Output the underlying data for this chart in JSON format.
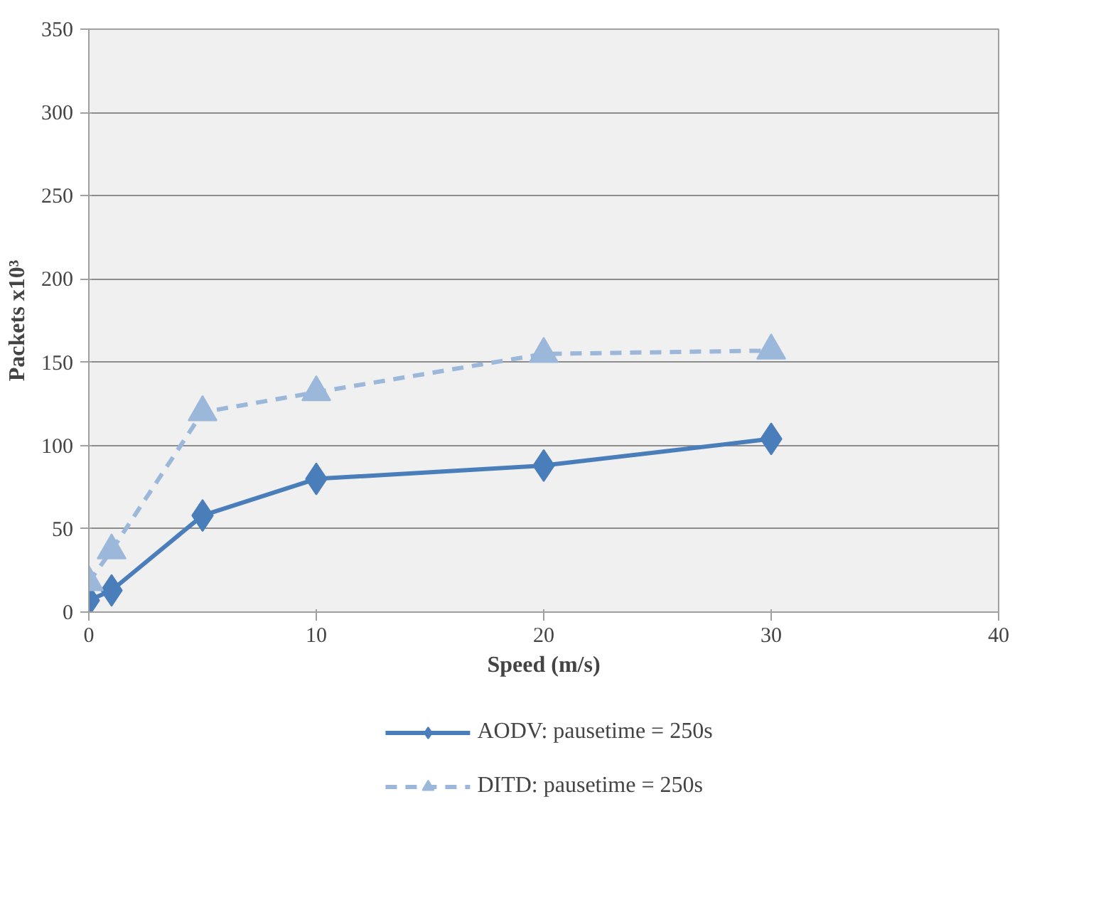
{
  "chart_data": {
    "type": "line",
    "xlabel": "Speed (m/s)",
    "ylabel": "Packets x10³",
    "x": [
      0,
      1,
      5,
      10,
      20,
      30
    ],
    "series": [
      {
        "name": "AODV: pausetime = 250s",
        "color": "#4a7ebb",
        "marker": "diamond",
        "line_style": "solid",
        "values": [
          7,
          13,
          58,
          80,
          88,
          104
        ]
      },
      {
        "name": "DITD: pausetime = 250s",
        "color": "#9bb7d9",
        "marker": "triangle",
        "line_style": "dashed",
        "values": [
          18,
          37,
          120,
          132,
          155,
          157
        ]
      }
    ],
    "xlim": [
      0,
      40
    ],
    "xticks": [
      0,
      10,
      20,
      30,
      40
    ],
    "ylim": [
      0,
      350
    ],
    "yticks": [
      0,
      50,
      100,
      150,
      200,
      250,
      300,
      350
    ],
    "grid": "y",
    "legend": "bottom"
  }
}
